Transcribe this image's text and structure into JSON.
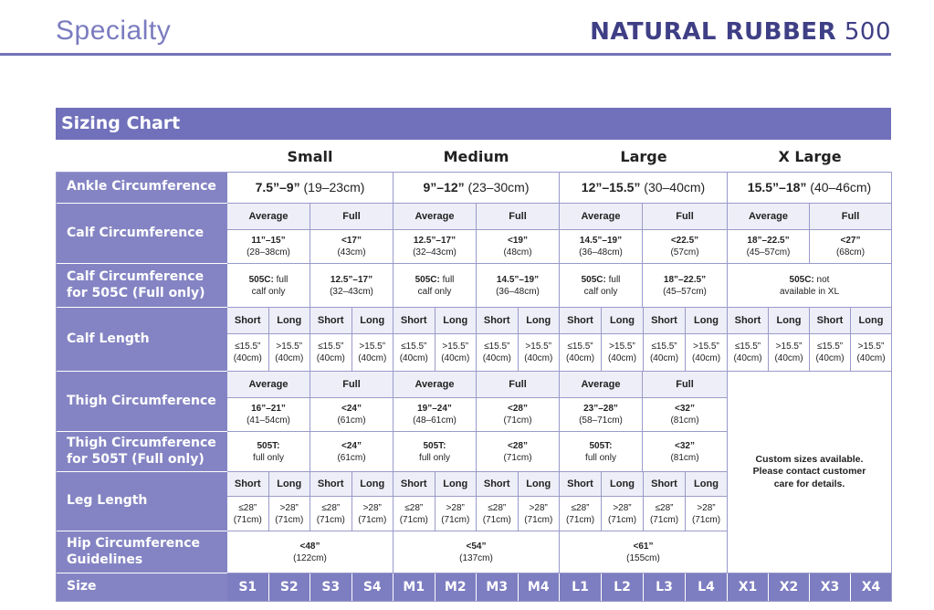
{
  "header": {
    "section": "Specialty",
    "product_bold": "NATURAL RUBBER",
    "product_num": "500"
  },
  "banner": {
    "title": "Sizing Chart"
  },
  "sizes": [
    "Small",
    "Medium",
    "Large",
    "X Large"
  ],
  "rows": {
    "ankle": {
      "label": "Ankle Circumference",
      "values": [
        {
          "b": "7.5”–9”",
          "r": " (19–23cm)"
        },
        {
          "b": "9”–12”",
          "r": " (23–30cm)"
        },
        {
          "b": "12”–15.5”",
          "r": " (30–40cm)"
        },
        {
          "b": "15.5”–18”",
          "r": " (40–46cm)"
        }
      ]
    },
    "calf": {
      "label": "Calf Circumference",
      "headers": [
        "Average",
        "Full",
        "Average",
        "Full",
        "Average",
        "Full",
        "Average",
        "Full"
      ],
      "values": [
        {
          "b": "11”–15”",
          "r": "(28–38cm)"
        },
        {
          "b": "<17”",
          "r": "(43cm)"
        },
        {
          "b": "12.5”–17”",
          "r": "(32–43cm)"
        },
        {
          "b": "<19”",
          "r": "(48cm)"
        },
        {
          "b": "14.5”–19”",
          "r": "(36–48cm)"
        },
        {
          "b": "<22.5”",
          "r": "(57cm)"
        },
        {
          "b": "18”–22.5”",
          "r": "(45–57cm)"
        },
        {
          "b": "<27”",
          "r": "(68cm)"
        }
      ]
    },
    "calf505c": {
      "label1": "Calf Circumference",
      "label2": "for 505C (Full only)",
      "values": [
        {
          "b": "505C:",
          "r": " full",
          "r2": "calf only"
        },
        {
          "b": "12.5”–17”",
          "r": "",
          "r2": "(32–43cm)"
        },
        {
          "b": "505C:",
          "r": " full",
          "r2": "calf only"
        },
        {
          "b": "14.5”–19”",
          "r": "",
          "r2": "(36–48cm)"
        },
        {
          "b": "505C:",
          "r": " full",
          "r2": "calf only"
        },
        {
          "b": "18”–22.5”",
          "r": "",
          "r2": "(45–57cm)"
        },
        {
          "b": "505C:",
          "r": " not",
          "r2": "available in XL"
        }
      ]
    },
    "calflen": {
      "label": "Calf Length",
      "headers": [
        "Short",
        "Long"
      ],
      "short": {
        "a": "≤15.5”",
        "b": "(40cm)"
      },
      "long": {
        "a": ">15.5”",
        "b": "(40cm)"
      }
    },
    "thigh": {
      "label": "Thigh Circumference",
      "headers": [
        "Average",
        "Full",
        "Average",
        "Full",
        "Average",
        "Full"
      ],
      "values": [
        {
          "b": "16”–21”",
          "r": "(41–54cm)"
        },
        {
          "b": "<24”",
          "r": "(61cm)"
        },
        {
          "b": "19”–24”",
          "r": "(48–61cm)"
        },
        {
          "b": "<28”",
          "r": "(71cm)"
        },
        {
          "b": "23”–28”",
          "r": "(58–71cm)"
        },
        {
          "b": "<32”",
          "r": "(81cm)"
        }
      ]
    },
    "thigh505t": {
      "label1": "Thigh Circumference",
      "label2": "for 505T (Full only)",
      "values": [
        {
          "b": "505T:",
          "r": "full only"
        },
        {
          "b": "<24”",
          "r": "(61cm)"
        },
        {
          "b": "505T:",
          "r": "full only"
        },
        {
          "b": "<28”",
          "r": "(71cm)"
        },
        {
          "b": "505T:",
          "r": "full only"
        },
        {
          "b": "<32”",
          "r": "(81cm)"
        }
      ]
    },
    "leglen": {
      "label": "Leg Length",
      "headers": [
        "Short",
        "Long"
      ],
      "short": {
        "a": "≤28”",
        "b": "(71cm)"
      },
      "long": {
        "a": ">28”",
        "b": "(71cm)"
      }
    },
    "hip": {
      "label1": "Hip Circumference",
      "label2": "Guidelines",
      "values": [
        {
          "b": "<48”",
          "r": "(122cm)"
        },
        {
          "b": "<54”",
          "r": "(137cm)"
        },
        {
          "b": "<61”",
          "r": "(155cm)"
        }
      ]
    },
    "custom": {
      "line1": "Custom sizes available.",
      "line2": "Please contact customer",
      "line3": "care for details."
    },
    "size": {
      "label": "Size",
      "codes": [
        "S1",
        "S2",
        "S3",
        "S4",
        "M1",
        "M2",
        "M3",
        "M4",
        "L1",
        "L2",
        "L3",
        "L4",
        "X1",
        "X2",
        "X3",
        "X4"
      ]
    }
  }
}
